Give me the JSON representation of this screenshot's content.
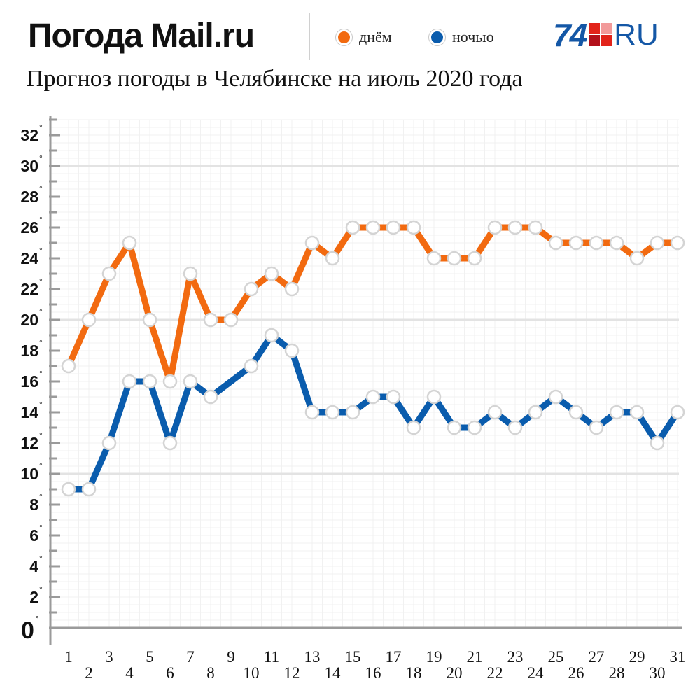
{
  "header": {
    "brand": "Погода Mail.ru",
    "logo_number": "74",
    "logo_suffix": "RU"
  },
  "legend": {
    "day_label": "днём",
    "night_label": "ночью"
  },
  "colors": {
    "day": "#f26a10",
    "night": "#0a5cad",
    "grid_major": "#e3e3e3",
    "grid_minor": "#f1f1f1",
    "axis": "#9a9a9a",
    "logo_blue": "#1457a6",
    "logo_red": "#e2231a",
    "logo_red_light": "#f29a9a"
  },
  "chart_data": {
    "type": "line",
    "title": "Прогноз погоды в Челябинске на июль 2020 года",
    "xlabel": "",
    "ylabel": "",
    "x": [
      1,
      2,
      3,
      4,
      5,
      6,
      7,
      8,
      9,
      10,
      11,
      12,
      13,
      14,
      15,
      16,
      17,
      18,
      19,
      20,
      21,
      22,
      23,
      24,
      25,
      26,
      27,
      28,
      29,
      30,
      31
    ],
    "series": [
      {
        "name": "днём",
        "color": "#f26a10",
        "values": [
          17,
          20,
          23,
          25,
          20,
          16,
          23,
          20,
          20,
          22,
          23,
          22,
          25,
          24,
          26,
          26,
          26,
          26,
          24,
          24,
          24,
          26,
          26,
          26,
          25,
          25,
          25,
          25,
          24,
          25,
          25
        ]
      },
      {
        "name": "ночью",
        "color": "#0a5cad",
        "values": [
          9,
          9,
          12,
          16,
          16,
          12,
          16,
          15,
          null,
          17,
          19,
          18,
          14,
          14,
          14,
          15,
          15,
          13,
          15,
          13,
          13,
          14,
          13,
          14,
          15,
          14,
          13,
          14,
          14,
          12,
          14
        ]
      }
    ],
    "yticks": [
      0,
      2,
      4,
      6,
      8,
      10,
      12,
      14,
      16,
      18,
      20,
      22,
      24,
      26,
      28,
      30,
      32
    ],
    "ylim": [
      0,
      33
    ],
    "xlim": [
      1,
      31
    ],
    "grid": true,
    "degree_mark": "°"
  }
}
